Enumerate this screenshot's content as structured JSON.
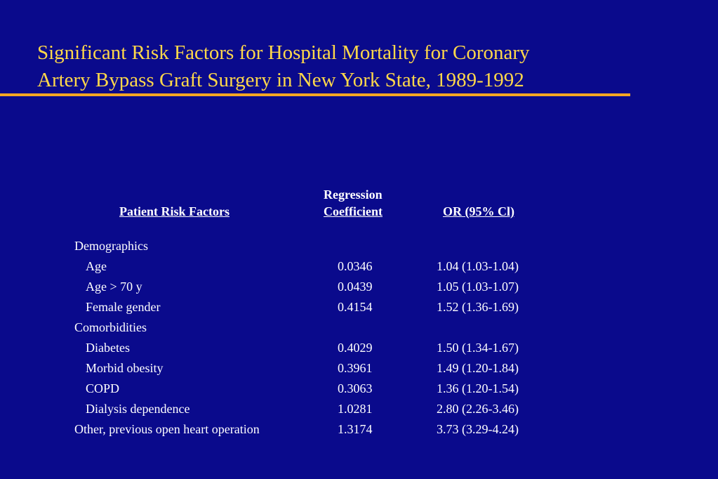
{
  "title": {
    "line1": "Significant Risk Factors for Hospital Mortality for Coronary",
    "line2": "Artery Bypass Graft Surgery in New York State, 1989-1992"
  },
  "colors": {
    "background": "#0a0a8c",
    "title": "#ffd84a",
    "rule": "#f5a623",
    "text": "#ffffff"
  },
  "table": {
    "headers": {
      "factor": "Patient Risk Factors",
      "coef_line1": "Regression",
      "coef_line2": "Coefficient",
      "or": "OR (95% Cl)"
    },
    "rows": [
      {
        "factor": "Demographics",
        "coef": "",
        "or": "",
        "indent": false
      },
      {
        "factor": "Age",
        "coef": "0.0346",
        "or": "1.04 (1.03-1.04)",
        "indent": true
      },
      {
        "factor": "Age > 70 y",
        "coef": "0.0439",
        "or": "1.05 (1.03-1.07)",
        "indent": true
      },
      {
        "factor": "Female gender",
        "coef": "0.4154",
        "or": "1.52 (1.36-1.69)",
        "indent": true
      },
      {
        "factor": "Comorbidities",
        "coef": "",
        "or": "",
        "indent": false
      },
      {
        "factor": "Diabetes",
        "coef": "0.4029",
        "or": "1.50 (1.34-1.67)",
        "indent": true
      },
      {
        "factor": "Morbid obesity",
        "coef": "0.3961",
        "or": "1.49 (1.20-1.84)",
        "indent": true
      },
      {
        "factor": "COPD",
        "coef": "0.3063",
        "or": "1.36 (1.20-1.54)",
        "indent": true
      },
      {
        "factor": "Dialysis dependence",
        "coef": "1.0281",
        "or": "2.80 (2.26-3.46)",
        "indent": true
      },
      {
        "factor": "Other, previous open heart operation",
        "coef": "1.3174",
        "or": "3.73 (3.29-4.24)",
        "indent": false
      }
    ]
  }
}
